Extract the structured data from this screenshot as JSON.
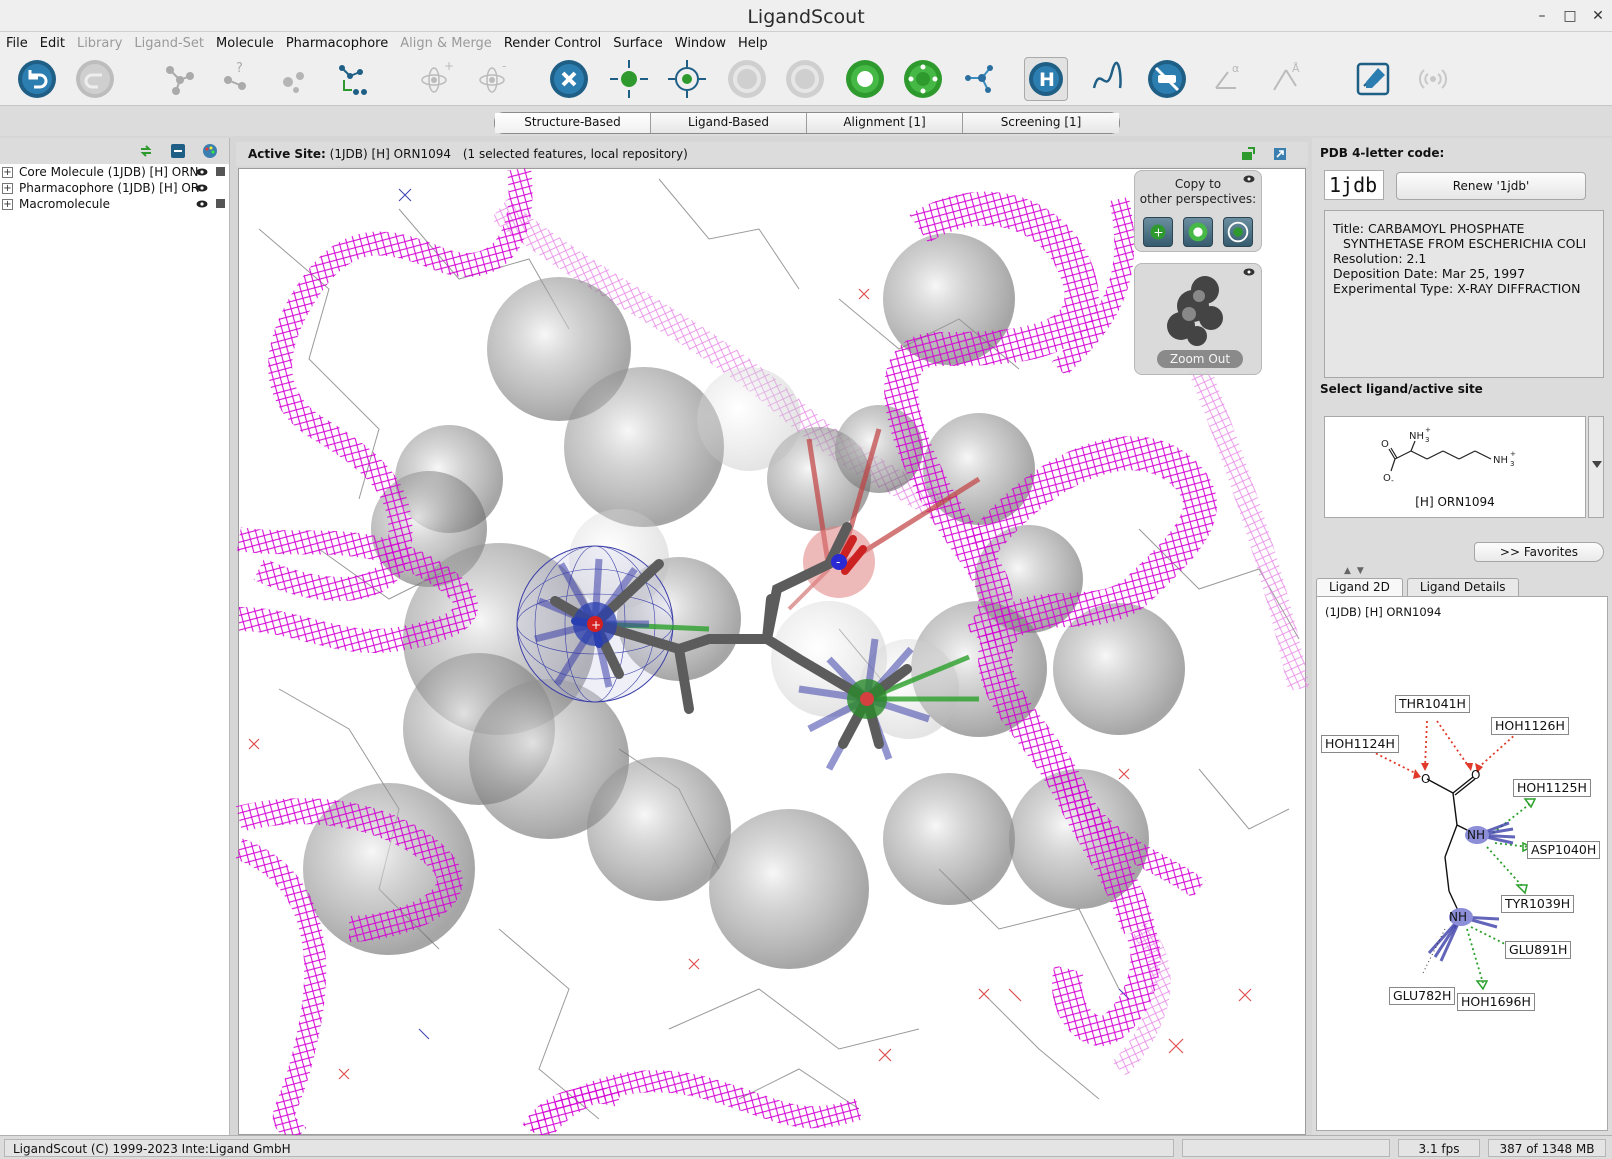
{
  "window": {
    "title": "LigandScout",
    "controls": [
      "–",
      "□",
      "✕"
    ]
  },
  "menu": [
    {
      "label": "File",
      "enabled": true
    },
    {
      "label": "Edit",
      "enabled": true
    },
    {
      "label": "Library",
      "enabled": false
    },
    {
      "label": "Ligand-Set",
      "enabled": false
    },
    {
      "label": "Molecule",
      "enabled": true
    },
    {
      "label": "Pharmacophore",
      "enabled": true
    },
    {
      "label": "Align & Merge",
      "enabled": false
    },
    {
      "label": "Render Control",
      "enabled": true
    },
    {
      "label": "Surface",
      "enabled": true
    },
    {
      "label": "Window",
      "enabled": true
    },
    {
      "label": "Help",
      "enabled": true
    }
  ],
  "toolbar": {
    "icons": [
      "undo-icon",
      "redo-icon",
      "molecule-icon",
      "query-atom-icon",
      "fragment-icon",
      "build-icon",
      "add-atom-icon",
      "remove-atom-icon",
      "close-circle-icon",
      "expand-site-icon",
      "focus-site-icon",
      "rotate-left-icon",
      "rotate-right-icon",
      "pharmacophore-icon",
      "exclusion-icon",
      "network-icon",
      "hydrogen-icon",
      "spline-icon",
      "clear-icon",
      "angle-icon",
      "distance-icon",
      "edit-icon",
      "signal-icon"
    ]
  },
  "perspectives": {
    "tabs": [
      "Structure-Based",
      "Ligand-Based",
      "Alignment [1]",
      "Screening [1]"
    ],
    "active": 0
  },
  "tree": {
    "items": [
      {
        "label": "Core Molecule (1JDB) [H] ORN"
      },
      {
        "label": "Pharmacophore (1JDB) [H] OR"
      },
      {
        "label": "Macromolecule"
      }
    ]
  },
  "viewer": {
    "header_label": "Active Site:",
    "header_value": "(1JDB) [H] ORN1094",
    "header_status": "(1 selected features, local repository)",
    "copy_label_1": "Copy to",
    "copy_label_2": "other perspectives:",
    "zoom_out": "Zoom Out",
    "charge_plus": "+",
    "charge_minus": "-"
  },
  "right_panel": {
    "pdb_label": "PDB 4-letter code:",
    "pdb_code": "1jdb",
    "renew_label": "Renew '1jdb'",
    "info": {
      "title_label": "Title:",
      "title_line1": "CARBAMOYL PHOSPHATE",
      "title_line2": "SYNTHETASE FROM ESCHERICHIA COLI",
      "resolution": "Resolution: 2.1",
      "deposition": "Deposition Date: Mar 25, 1997",
      "exp_type": "Experimental Type: X-RAY DIFFRACTION"
    },
    "select_label": "Select ligand/active site",
    "ligand_name": "[H] ORN1094",
    "ligand_atoms": {
      "nh3_top": "NH",
      "nh3_right": "NH",
      "o1": "O",
      "o2": "O",
      "sub3": "3",
      "plus": "+",
      "minus": "-"
    },
    "favorites": ">> Favorites",
    "tabs": [
      "Ligand 2D",
      "Ligand Details"
    ],
    "active_tab": 0,
    "diagram_caption": "(1JDB) [H] ORN1094",
    "residues": [
      "THR1041H",
      "HOH1126H",
      "HOH1124H",
      "HOH1125H",
      "ASP1040H",
      "TYR1039H",
      "GLU891H",
      "GLU782H",
      "HOH1696H"
    ],
    "diagram_atoms": {
      "o_left": "O",
      "o_right": "O",
      "nh_top": "NH",
      "nh_bottom": "NH"
    }
  },
  "status": {
    "copyright": "LigandScout (C) 1999-2023 Inte:Ligand GmbH",
    "fps": "3.1 fps",
    "memory": "387 of 1348 MB"
  },
  "colors": {
    "ribbon": "#d400d4",
    "sphere": "#8a8a8a",
    "hbond_acceptor": "#e03a2a",
    "hbond_donor": "#2aa02a",
    "positive_ionizable": "#3b3fa8",
    "toolbar_blue": "#1f5f86",
    "toolbar_green": "#2e9a2e"
  }
}
